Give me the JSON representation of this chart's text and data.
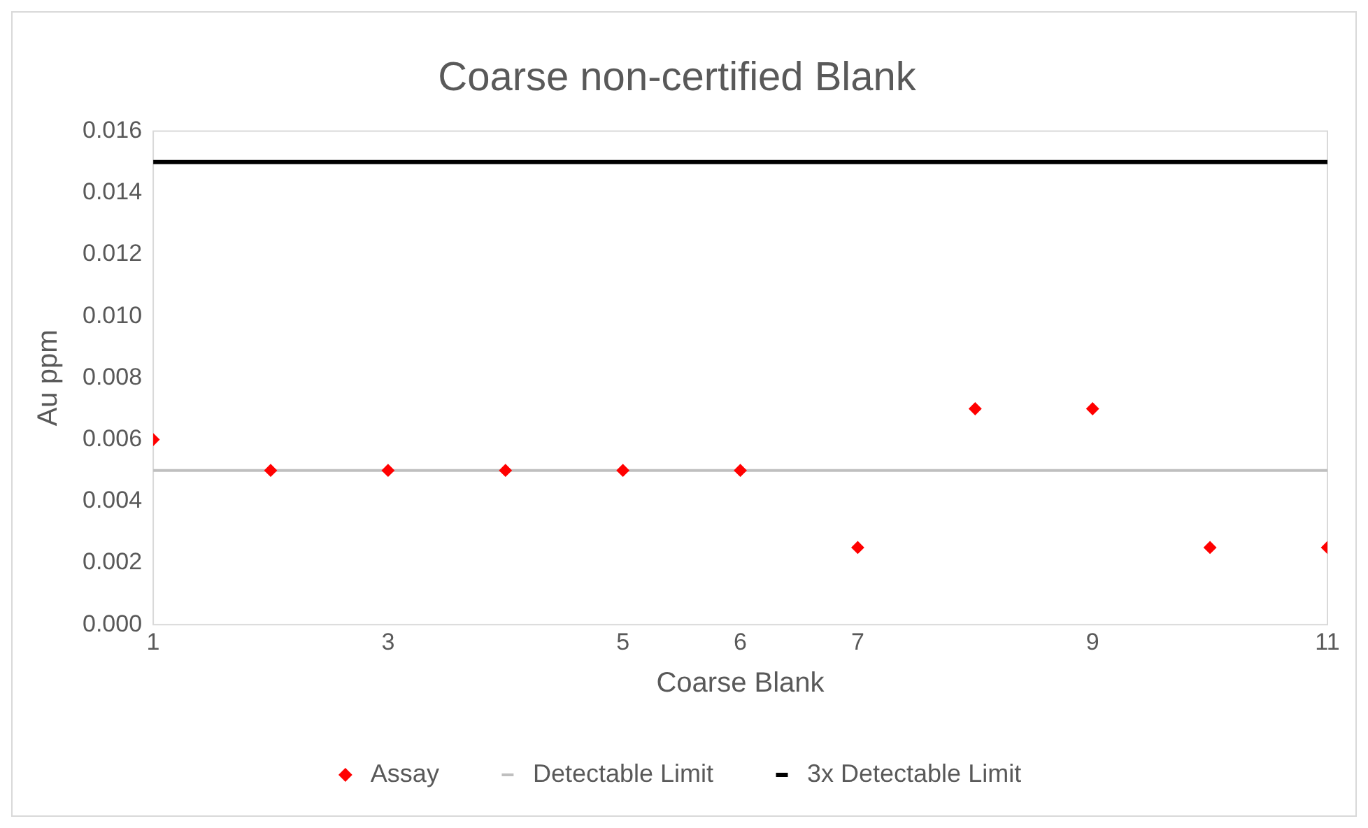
{
  "chart_data": {
    "type": "scatter",
    "title": "Coarse non-certified Blank",
    "xlabel": "Coarse Blank",
    "ylabel": "Au ppm",
    "xlim": [
      1,
      11
    ],
    "xticks": [
      1,
      3,
      5,
      6,
      7,
      9,
      11
    ],
    "ylim": [
      0,
      0.016
    ],
    "yticks": [
      {
        "value": 0,
        "label": "0.000"
      },
      {
        "value": 0.002,
        "label": "0.002"
      },
      {
        "value": 0.004,
        "label": "0.004"
      },
      {
        "value": 0.006,
        "label": "0.006"
      },
      {
        "value": 0.008,
        "label": "0.008"
      },
      {
        "value": 0.01,
        "label": "0.010"
      },
      {
        "value": 0.012,
        "label": "0.012"
      },
      {
        "value": 0.014,
        "label": "0.014"
      },
      {
        "value": 0.016,
        "label": "0.016"
      }
    ],
    "grid": false,
    "legend": "bottom",
    "series": [
      {
        "name": "Assay",
        "type": "scatter",
        "marker": "diamond",
        "color": "#ff0000",
        "x": [
          1,
          2,
          3,
          4,
          5,
          6,
          7,
          8,
          9,
          10,
          11
        ],
        "values": [
          0.006,
          0.005,
          0.005,
          0.005,
          0.005,
          0.005,
          0.0025,
          0.007,
          0.007,
          0.0025,
          0.0025
        ]
      },
      {
        "name": "Detectable Limit",
        "type": "line",
        "color": "#bfbfbf",
        "x": [
          1,
          11
        ],
        "values": [
          0.005,
          0.005
        ]
      },
      {
        "name": "3x Detectable Limit",
        "type": "line",
        "color": "#000000",
        "x": [
          1,
          11
        ],
        "values": [
          0.015,
          0.015
        ]
      }
    ]
  }
}
